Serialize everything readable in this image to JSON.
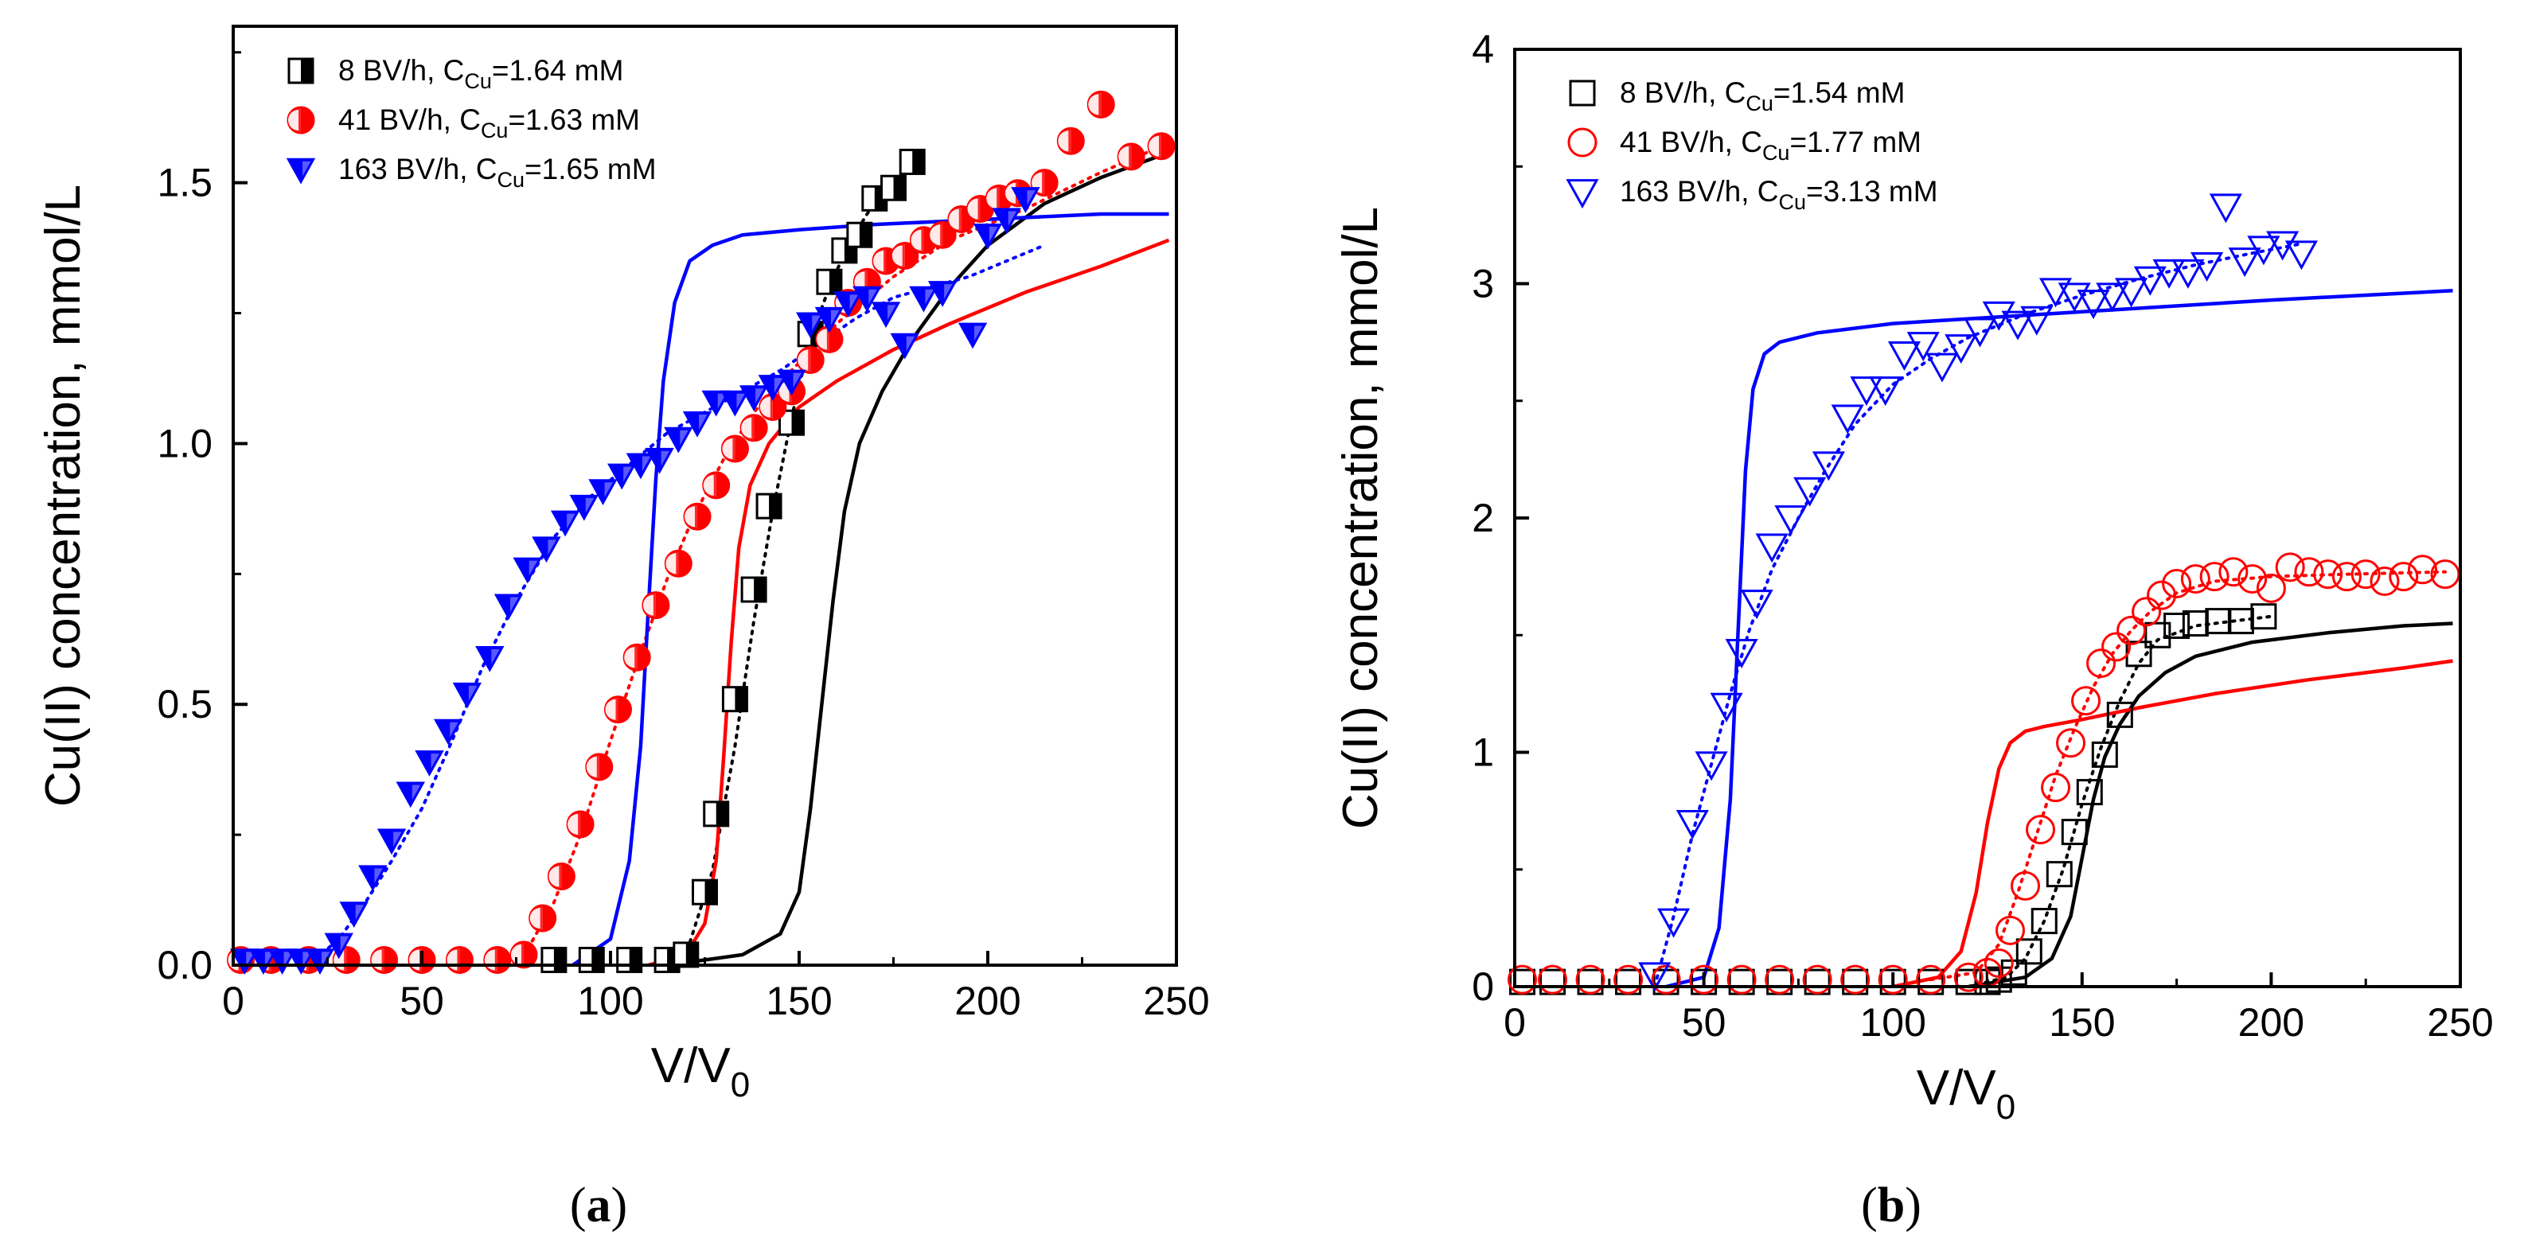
{
  "chart_data": [
    {
      "type": "scatter",
      "panel_label": "a",
      "xlabel": "V/V",
      "xlabel_sub": "0",
      "ylabel": "Cu(II) concentration, mmol/L",
      "xlim": [
        0,
        250
      ],
      "ylim": [
        0,
        1.8
      ],
      "xticks": [
        "0",
        "50",
        "100",
        "150",
        "200",
        "250"
      ],
      "yticks": [
        "0.0",
        "0.5",
        "1.0",
        "1.5"
      ],
      "ytick_values": [
        0,
        0.5,
        1.0,
        1.5
      ],
      "xtick_values": [
        0,
        50,
        100,
        150,
        200,
        250
      ],
      "series": [
        {
          "name_prefix": "8 BV/h, C",
          "name_sub": "Cu",
          "name_suffix": "=1.64 mM",
          "color": "#000000",
          "marker": "half-square",
          "x": [
            85,
            95,
            105,
            115,
            120,
            125,
            128,
            133,
            138,
            142,
            148,
            153,
            158,
            162,
            166,
            170,
            175,
            180
          ],
          "y": [
            0.01,
            0.01,
            0.01,
            0.01,
            0.02,
            0.14,
            0.29,
            0.51,
            0.72,
            0.88,
            1.04,
            1.21,
            1.31,
            1.37,
            1.4,
            1.47,
            1.49,
            1.54
          ],
          "fit_solid": {
            "x": [
              115,
              135,
              145,
              150,
              153,
              156,
              159,
              162,
              166,
              172,
              180,
              190,
              200,
              215,
              230,
              245
            ],
            "y": [
              0.0,
              0.02,
              0.06,
              0.14,
              0.3,
              0.5,
              0.7,
              0.87,
              1.0,
              1.1,
              1.2,
              1.3,
              1.38,
              1.46,
              1.51,
              1.55
            ]
          },
          "fit_dotted": {
            "x": [
              110,
              120,
              127,
              133,
              138,
              143,
              148,
              153,
              158,
              163,
              168,
              173,
              180
            ],
            "y": [
              0.0,
              0.02,
              0.18,
              0.42,
              0.66,
              0.87,
              1.05,
              1.2,
              1.3,
              1.38,
              1.44,
              1.49,
              1.52
            ]
          }
        },
        {
          "name_prefix": "41 BV/h, C",
          "name_sub": "Cu",
          "name_suffix": "=1.63 mM",
          "color": "#ff0000",
          "marker": "half-circle",
          "x": [
            2,
            10,
            20,
            30,
            40,
            50,
            60,
            70,
            77,
            82,
            87,
            92,
            97,
            102,
            107,
            112,
            118,
            123,
            128,
            133,
            138,
            143,
            148,
            153,
            158,
            163,
            168,
            173,
            178,
            183,
            188,
            193,
            198,
            203,
            208,
            215,
            222,
            230,
            238,
            246
          ],
          "y": [
            0.01,
            0.01,
            0.01,
            0.01,
            0.01,
            0.01,
            0.01,
            0.01,
            0.02,
            0.09,
            0.17,
            0.27,
            0.38,
            0.49,
            0.59,
            0.69,
            0.77,
            0.86,
            0.92,
            0.99,
            1.03,
            1.07,
            1.1,
            1.16,
            1.2,
            1.27,
            1.31,
            1.35,
            1.36,
            1.39,
            1.4,
            1.43,
            1.45,
            1.47,
            1.48,
            1.5,
            1.58,
            1.65,
            1.55,
            1.57
          ],
          "fit_solid": {
            "x": [
              110,
              120,
              125,
              128,
              130,
              132,
              134,
              137,
              142,
              150,
              160,
              175,
              190,
              210,
              230,
              248
            ],
            "y": [
              0.0,
              0.02,
              0.08,
              0.2,
              0.4,
              0.62,
              0.8,
              0.92,
              1.0,
              1.07,
              1.12,
              1.18,
              1.23,
              1.29,
              1.34,
              1.39
            ]
          },
          "fit_dotted": {
            "x": [
              70,
              78,
              85,
              92,
              100,
              108,
              115,
              122,
              130,
              138,
              148,
              160,
              175,
              190,
              210,
              230,
              246
            ],
            "y": [
              0.0,
              0.03,
              0.12,
              0.25,
              0.43,
              0.6,
              0.74,
              0.86,
              0.97,
              1.06,
              1.14,
              1.23,
              1.32,
              1.39,
              1.45,
              1.52,
              1.57
            ]
          }
        },
        {
          "name_prefix": "163 BV/h, C",
          "name_sub": "Cu",
          "name_suffix": "=1.65 mM",
          "color": "#0000ff",
          "marker": "half-triangle-down",
          "x": [
            3,
            8,
            13,
            18,
            23,
            28,
            32,
            37,
            42,
            47,
            52,
            57,
            62,
            68,
            73,
            78,
            83,
            88,
            93,
            98,
            103,
            108,
            113,
            118,
            123,
            128,
            133,
            138,
            143,
            148,
            153,
            158,
            163,
            168,
            173,
            178,
            183,
            188,
            196,
            200,
            205,
            210
          ],
          "y": [
            0.01,
            0.01,
            0.01,
            0.01,
            0.01,
            0.04,
            0.1,
            0.17,
            0.24,
            0.33,
            0.39,
            0.45,
            0.52,
            0.59,
            0.69,
            0.76,
            0.8,
            0.85,
            0.88,
            0.91,
            0.94,
            0.96,
            0.97,
            1.01,
            1.04,
            1.08,
            1.08,
            1.09,
            1.11,
            1.12,
            1.23,
            1.24,
            1.27,
            1.28,
            1.25,
            1.19,
            1.28,
            1.29,
            1.21,
            1.4,
            1.43,
            1.47
          ],
          "fit_solid": {
            "x": [
              90,
              100,
              105,
              108,
              110,
              112,
              114,
              117,
              121,
              127,
              135,
              150,
              170,
              200,
              230,
              248
            ],
            "y": [
              0.0,
              0.05,
              0.2,
              0.42,
              0.68,
              0.93,
              1.12,
              1.27,
              1.35,
              1.38,
              1.4,
              1.41,
              1.42,
              1.43,
              1.44,
              1.44
            ]
          },
          "fit_dotted": {
            "x": [
              20,
              28,
              35,
              42,
              50,
              58,
              66,
              75,
              85,
              95,
              105,
              115,
              125,
              135,
              145,
              155,
              165,
              175,
              185,
              195,
              205,
              215
            ],
            "y": [
              0.0,
              0.05,
              0.12,
              0.2,
              0.3,
              0.43,
              0.57,
              0.7,
              0.82,
              0.9,
              0.96,
              1.02,
              1.06,
              1.1,
              1.14,
              1.19,
              1.24,
              1.28,
              1.3,
              1.32,
              1.35,
              1.38
            ]
          }
        }
      ]
    },
    {
      "type": "scatter",
      "panel_label": "b",
      "xlabel": "V/V",
      "xlabel_sub": "0",
      "ylabel": "Cu(II) concentration, mmol/L",
      "xlim": [
        0,
        250
      ],
      "ylim": [
        0,
        4
      ],
      "xticks": [
        "0",
        "50",
        "100",
        "150",
        "200",
        "250"
      ],
      "yticks": [
        "0",
        "1",
        "2",
        "3",
        "4"
      ],
      "ytick_values": [
        0,
        1,
        2,
        3,
        4
      ],
      "xtick_values": [
        0,
        50,
        100,
        150,
        200,
        250
      ],
      "series": [
        {
          "name_prefix": "8 BV/h, C",
          "name_sub": "Cu",
          "name_suffix": "=1.54 mM",
          "color": "#000000",
          "marker": "open-square",
          "x": [
            2,
            10,
            20,
            30,
            40,
            50,
            60,
            70,
            80,
            90,
            100,
            110,
            120,
            125,
            128,
            132,
            136,
            140,
            144,
            148,
            152,
            156,
            160,
            165,
            170,
            175,
            180,
            186,
            192,
            198
          ],
          "y": [
            0.02,
            0.02,
            0.02,
            0.02,
            0.02,
            0.02,
            0.02,
            0.02,
            0.02,
            0.02,
            0.02,
            0.02,
            0.02,
            0.02,
            0.03,
            0.06,
            0.15,
            0.28,
            0.48,
            0.66,
            0.83,
            0.99,
            1.16,
            1.42,
            1.5,
            1.54,
            1.55,
            1.56,
            1.56,
            1.58
          ]
        },
        {
          "name_prefix": "41 BV/h, C",
          "name_sub": "Cu",
          "name_suffix": "=1.77 mM",
          "color": "#ff0000",
          "marker": "open-circle",
          "x": [
            2,
            10,
            20,
            30,
            40,
            50,
            60,
            70,
            80,
            90,
            100,
            110,
            120,
            125,
            128,
            131,
            135,
            139,
            143,
            147,
            151,
            155,
            159,
            163,
            167,
            171,
            175,
            180,
            185,
            190,
            195,
            200,
            205,
            210,
            215,
            220,
            225,
            230,
            235,
            240,
            246
          ],
          "y": [
            0.03,
            0.03,
            0.03,
            0.03,
            0.03,
            0.03,
            0.03,
            0.03,
            0.03,
            0.03,
            0.03,
            0.03,
            0.04,
            0.06,
            0.1,
            0.24,
            0.43,
            0.67,
            0.85,
            1.04,
            1.22,
            1.38,
            1.45,
            1.52,
            1.6,
            1.67,
            1.72,
            1.74,
            1.75,
            1.77,
            1.74,
            1.7,
            1.79,
            1.77,
            1.76,
            1.75,
            1.76,
            1.73,
            1.75,
            1.78,
            1.76
          ]
        },
        {
          "name_prefix": "163 BV/h, C",
          "name_sub": "Cu",
          "name_suffix": "=3.13 mM",
          "color": "#0000ff",
          "marker": "open-triangle-down",
          "x": [
            37,
            42,
            47,
            52,
            56,
            60,
            64,
            68,
            73,
            78,
            83,
            88,
            93,
            98,
            103,
            108,
            113,
            118,
            123,
            128,
            133,
            138,
            143,
            148,
            153,
            158,
            163,
            168,
            173,
            178,
            183,
            188,
            193,
            198,
            203,
            208
          ],
          "y": [
            0.05,
            0.28,
            0.7,
            0.95,
            1.2,
            1.43,
            1.64,
            1.88,
            2.0,
            2.12,
            2.23,
            2.43,
            2.55,
            2.55,
            2.7,
            2.74,
            2.65,
            2.73,
            2.8,
            2.87,
            2.83,
            2.85,
            2.97,
            2.95,
            2.92,
            2.95,
            2.97,
            3.02,
            3.05,
            3.05,
            3.08,
            3.33,
            3.1,
            3.15,
            3.17,
            3.13
          ]
        },
        {
          "name_prefix": "",
          "name_sub": "",
          "name_suffix": "",
          "color": "#000000",
          "marker": "none",
          "x": [],
          "y": []
        }
      ],
      "fits": [
        {
          "color": "#000000",
          "style": "solid",
          "x": [
            120,
            135,
            142,
            147,
            150,
            153,
            156,
            160,
            165,
            172,
            180,
            195,
            215,
            235,
            248
          ],
          "y": [
            0.0,
            0.04,
            0.12,
            0.3,
            0.55,
            0.8,
            0.98,
            1.12,
            1.24,
            1.34,
            1.41,
            1.47,
            1.51,
            1.54,
            1.55
          ]
        },
        {
          "color": "#000000",
          "style": "dotted",
          "x": [
            120,
            130,
            135,
            140,
            145,
            150,
            155,
            160,
            165,
            170,
            180,
            190,
            200
          ],
          "y": [
            0.0,
            0.04,
            0.12,
            0.28,
            0.5,
            0.78,
            1.02,
            1.22,
            1.38,
            1.48,
            1.54,
            1.56,
            1.58
          ]
        },
        {
          "color": "#ff0000",
          "style": "solid",
          "x": [
            100,
            112,
            118,
            122,
            125,
            128,
            131,
            135,
            140,
            150,
            165,
            185,
            210,
            235,
            248
          ],
          "y": [
            0.0,
            0.04,
            0.15,
            0.4,
            0.7,
            0.93,
            1.04,
            1.09,
            1.11,
            1.14,
            1.19,
            1.25,
            1.31,
            1.36,
            1.39
          ]
        },
        {
          "color": "#ff0000",
          "style": "dotted",
          "x": [
            110,
            122,
            128,
            133,
            138,
            143,
            148,
            153,
            158,
            163,
            168,
            175,
            185,
            200,
            220,
            246
          ],
          "y": [
            0.03,
            0.06,
            0.18,
            0.4,
            0.65,
            0.9,
            1.1,
            1.28,
            1.42,
            1.52,
            1.6,
            1.68,
            1.73,
            1.75,
            1.76,
            1.77
          ]
        },
        {
          "color": "#0000ff",
          "style": "solid",
          "x": [
            40,
            50,
            54,
            57,
            59,
            61,
            63,
            66,
            70,
            80,
            100,
            130,
            160,
            200,
            248
          ],
          "y": [
            0.0,
            0.04,
            0.25,
            0.8,
            1.5,
            2.2,
            2.55,
            2.7,
            2.75,
            2.79,
            2.83,
            2.86,
            2.89,
            2.93,
            2.97
          ]
        },
        {
          "color": "#0000ff",
          "style": "dotted",
          "x": [
            37,
            42,
            47,
            52,
            57,
            62,
            68,
            75,
            82,
            90,
            100,
            110,
            120,
            135,
            150,
            165,
            180,
            195,
            208
          ],
          "y": [
            0.0,
            0.3,
            0.65,
            0.95,
            1.25,
            1.52,
            1.78,
            2.0,
            2.2,
            2.4,
            2.57,
            2.68,
            2.77,
            2.87,
            2.95,
            3.02,
            3.08,
            3.13,
            3.17
          ]
        }
      ]
    }
  ]
}
